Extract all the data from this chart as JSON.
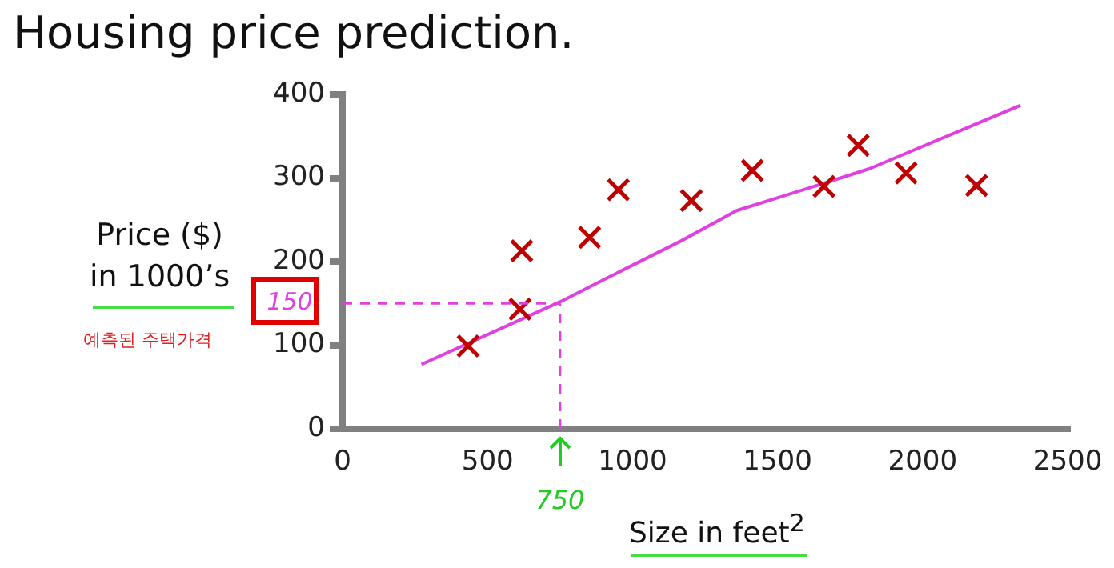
{
  "chart_data": {
    "type": "scatter",
    "title": "Housing price prediction.",
    "xlabel": "Size in feet$^{2}$",
    "ylabel": "Price ($)\nin 1000’s",
    "annotations": [
      "예측된 주택가격"
    ],
    "xlim": [
      0,
      2500
    ],
    "xticks": [
      0,
      500,
      1000,
      1500,
      2000,
      2500
    ],
    "ylim": [
      0,
      400
    ],
    "yticks": [
      0,
      100,
      200,
      300,
      400
    ],
    "grid": false,
    "legend": false,
    "ref_lines": [
      {
        "axis": "y",
        "value": 150,
        "label": "150",
        "color": "#e040e0",
        "line_style": "dashed"
      },
      {
        "axis": "x",
        "value": 750,
        "label": "750",
        "color": "#e040e0",
        "line_style": "dashed"
      }
    ],
    "series": [
      {
        "color": "#c00000",
        "marker": "cross",
        "x": [
          433,
          618,
          612,
          852,
          951,
          1203,
          1413,
          1660,
          1778,
          1943,
          2186
        ],
        "values": [
          99,
          213,
          143,
          229,
          286,
          273,
          309,
          290,
          339,
          306,
          291
        ]
      },
      {
        "type": "line",
        "color": "#e040e0",
        "marker": "none",
        "line_style": "solid",
        "x": [
          272,
          751,
          979,
          1169,
          1359,
          1663,
          1816,
          2338
        ],
        "values": [
          77,
          152,
          192,
          225,
          261,
          294,
          311,
          387
        ]
      }
    ]
  }
}
